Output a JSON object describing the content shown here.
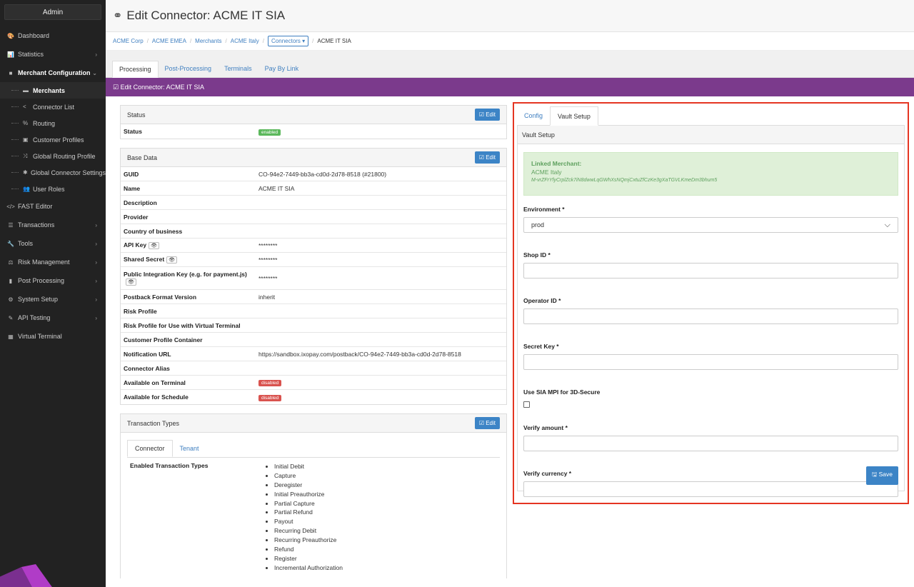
{
  "sidebar": {
    "admin_label": "Admin",
    "items": [
      {
        "label": "Dashboard",
        "icon": "dashboard-icon",
        "glyph": "🎨"
      },
      {
        "label": "Statistics",
        "icon": "chart-icon",
        "glyph": "📊"
      },
      {
        "label": "Merchant Configuration",
        "icon": "briefcase-icon",
        "glyph": "■"
      }
    ],
    "sub_items": [
      {
        "label": "Merchants",
        "glyph": "▬"
      },
      {
        "label": "Connector List",
        "glyph": "<"
      },
      {
        "label": "Routing",
        "glyph": "%"
      },
      {
        "label": "Customer Profiles",
        "glyph": "▣"
      },
      {
        "label": "Global Routing Profile",
        "glyph": "⤨"
      },
      {
        "label": "Global Connector Settings",
        "glyph": "✱"
      },
      {
        "label": "User Roles",
        "glyph": "👥"
      }
    ],
    "items_after": [
      {
        "label": "FAST Editor",
        "glyph": "</>",
        "chev": false
      },
      {
        "label": "Transactions",
        "glyph": "☰",
        "chev": true
      },
      {
        "label": "Tools",
        "glyph": "🔧",
        "chev": true
      },
      {
        "label": "Risk Management",
        "glyph": "⚖",
        "chev": true
      },
      {
        "label": "Post Processing",
        "glyph": "▮",
        "chev": true
      },
      {
        "label": "System Setup",
        "glyph": "⚙",
        "chev": true
      },
      {
        "label": "API Testing",
        "glyph": "✎",
        "chev": true
      },
      {
        "label": "Virtual Terminal",
        "glyph": "▦",
        "chev": false
      }
    ]
  },
  "header": {
    "title": "Edit Connector: ACME IT SIA"
  },
  "breadcrumb": {
    "items": [
      "ACME Corp",
      "ACME EMEA",
      "Merchants",
      "ACME Italy"
    ],
    "dropdown": "Connectors ▾",
    "current": "ACME IT SIA"
  },
  "tabs": [
    "Processing",
    "Post-Processing",
    "Terminals",
    "Pay By Link"
  ],
  "banner": "☑ Edit Connector: ACME IT SIA",
  "edit_label": "☑ Edit",
  "status_panel": {
    "title": "Status",
    "row_label": "Status",
    "badge": "enabled"
  },
  "base_data": {
    "title": "Base Data",
    "rows": [
      {
        "k": "GUID",
        "v": "CO-94e2-7449-bb3a-cd0d-2d78-8518 (#21800)"
      },
      {
        "k": "Name",
        "v": "ACME IT SIA"
      },
      {
        "k": "Description",
        "v": ""
      },
      {
        "k": "Provider",
        "v": ""
      },
      {
        "k": "Country of business",
        "v": ""
      },
      {
        "k": "API Key",
        "v": "********",
        "eye": true
      },
      {
        "k": "Shared Secret",
        "v": "********",
        "eye": true
      },
      {
        "k": "Public Integration Key (e.g. for payment.js)",
        "v": "********",
        "eye": true,
        "tall": true
      },
      {
        "k": "Postback Format Version",
        "v": "inherit"
      },
      {
        "k": "Risk Profile",
        "v": ""
      },
      {
        "k": "Risk Profile for Use with Virtual Terminal",
        "v": ""
      },
      {
        "k": "Customer Profile Container",
        "v": ""
      },
      {
        "k": "Notification URL",
        "v": "https://sandbox.ixopay.com/postback/CO-94e2-7449-bb3a-cd0d-2d78-8518"
      },
      {
        "k": "Connector Alias",
        "v": ""
      },
      {
        "k": "Available on Terminal",
        "badge": "disabled"
      },
      {
        "k": "Available for Schedule",
        "badge": "disabled"
      }
    ]
  },
  "transaction_types": {
    "title": "Transaction Types",
    "tabs": [
      "Connector",
      "Tenant"
    ],
    "label": "Enabled Transaction Types",
    "items": [
      "Initial Debit",
      "Capture",
      "Deregister",
      "Initial Preauthorize",
      "Partial Capture",
      "Partial Refund",
      "Payout",
      "Recurring Debit",
      "Recurring Preauthorize",
      "Refund",
      "Register",
      "Incremental Authorization"
    ]
  },
  "vault": {
    "tabs": [
      "Config",
      "Vault Setup"
    ],
    "panel_title": "Vault Setup",
    "linked_title": "Linked Merchant:",
    "linked_name": "ACME Italy",
    "linked_hash": "M-vrZFrYfyCrplZck7iN8dwwLqGWhXsNQmjCxtuZfCzKe3gXaTGVLKmeDm3bhum5",
    "environment_label": "Environment *",
    "environment_value": "prod",
    "shop_label": "Shop ID *",
    "operator_label": "Operator ID *",
    "secret_label": "Secret Key *",
    "mpi_label": "Use SIA MPI for 3D-Secure",
    "verify_amount_label": "Verify amount *",
    "verify_currency_label": "Verify currency *",
    "save_label": "🖫 Save"
  }
}
